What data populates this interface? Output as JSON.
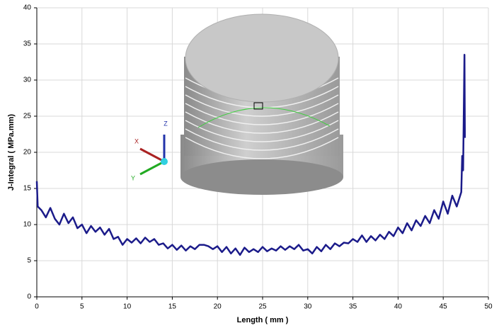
{
  "chart_data": {
    "type": "line",
    "x_label": "Length ( mm )",
    "y_label": "J-Integral ( MPa.mm)",
    "xlim": [
      0,
      50
    ],
    "xticks": [
      0,
      5,
      10,
      15,
      20,
      25,
      30,
      35,
      40,
      45,
      50
    ],
    "ylim": [
      0,
      40
    ],
    "yticks": [
      0,
      5,
      10,
      15,
      20,
      25,
      30,
      35,
      40
    ],
    "grid": true,
    "annotations": [
      "X",
      "Y",
      "Z"
    ],
    "series": [
      {
        "color": "#1b1b8a",
        "x": [
          0,
          0.1,
          0.5,
          1,
          1.5,
          2,
          2.5,
          3,
          3.5,
          4,
          4.5,
          5,
          5.5,
          6,
          6.5,
          7,
          7.5,
          8,
          8.5,
          9,
          9.5,
          10,
          10.5,
          11,
          11.5,
          12,
          12.5,
          13,
          13.5,
          14,
          14.5,
          15,
          15.5,
          16,
          16.5,
          17,
          17.5,
          18,
          18.5,
          19,
          19.5,
          20,
          20.5,
          21,
          21.5,
          22,
          22.5,
          23,
          23.5,
          24,
          24.5,
          25,
          25.5,
          26,
          26.5,
          27,
          27.5,
          28,
          28.5,
          29,
          29.5,
          30,
          30.5,
          31,
          31.5,
          32,
          32.5,
          33,
          33.5,
          34,
          34.5,
          35,
          35.5,
          36,
          36.5,
          37,
          37.5,
          38,
          38.5,
          39,
          39.5,
          40,
          40.5,
          41,
          41.5,
          42,
          42.5,
          43,
          43.5,
          44,
          44.5,
          45,
          45.5,
          46,
          46.5,
          47,
          47.1,
          47.2,
          47.35,
          47.4
        ],
        "values": [
          16,
          12.5,
          12,
          11,
          12.3,
          10.8,
          10,
          11.5,
          10.2,
          11,
          9.5,
          10,
          8.8,
          9.8,
          9,
          9.6,
          8.6,
          9.4,
          8,
          8.3,
          7.2,
          8,
          7.5,
          8.1,
          7.4,
          8.2,
          7.6,
          8,
          7.2,
          7.4,
          6.7,
          7.2,
          6.5,
          7.1,
          6.4,
          7,
          6.6,
          7.2,
          7.2,
          7,
          6.6,
          7,
          6.2,
          6.9,
          6,
          6.7,
          5.8,
          6.8,
          6.2,
          6.6,
          6.2,
          6.9,
          6.3,
          6.7,
          6.4,
          7,
          6.5,
          7,
          6.6,
          7.2,
          6.4,
          6.6,
          6,
          6.9,
          6.3,
          7.2,
          6.6,
          7.4,
          7,
          7.5,
          7.4,
          8,
          7.6,
          8.5,
          7.6,
          8.4,
          7.8,
          8.6,
          8,
          9,
          8.4,
          9.6,
          8.8,
          10.2,
          9.2,
          10.6,
          9.8,
          11.2,
          10.2,
          12,
          10.8,
          13.2,
          11.5,
          14,
          12.5,
          14.5,
          19.5,
          17.5,
          33.5,
          22
        ]
      }
    ]
  }
}
